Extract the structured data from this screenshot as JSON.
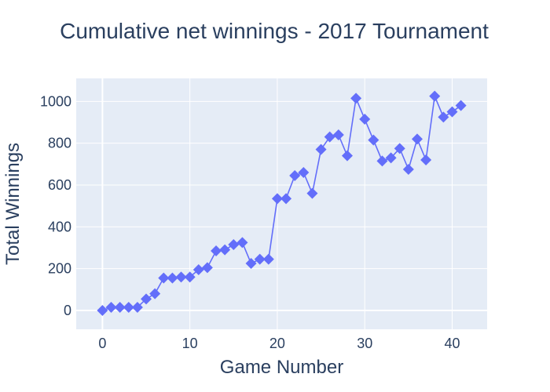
{
  "chart_data": {
    "type": "line",
    "title": "Cumulative net winnings - 2017 Tournament",
    "xlabel": "Game Number",
    "ylabel": "Total Winnings",
    "xlim": [
      -3,
      44
    ],
    "ylim": [
      -90,
      1110
    ],
    "xticks": [
      0,
      10,
      20,
      30,
      40
    ],
    "yticks": [
      0,
      200,
      400,
      600,
      800,
      1000
    ],
    "grid": true,
    "marker": "diamond",
    "colors": {
      "line": "#636efa",
      "plot_bg": "#e5ecf6",
      "text": "#2a3f5f"
    },
    "x": [
      0,
      1,
      2,
      3,
      4,
      5,
      6,
      7,
      8,
      9,
      10,
      11,
      12,
      13,
      14,
      15,
      16,
      17,
      18,
      19,
      20,
      21,
      22,
      23,
      24,
      25,
      26,
      27,
      28,
      29,
      30,
      31,
      32,
      33,
      34,
      35,
      36,
      37,
      38,
      39,
      40,
      41
    ],
    "y": [
      0,
      15,
      15,
      15,
      15,
      55,
      80,
      155,
      155,
      160,
      160,
      195,
      205,
      285,
      290,
      315,
      325,
      225,
      245,
      245,
      535,
      535,
      645,
      660,
      560,
      770,
      830,
      840,
      740,
      1015,
      915,
      815,
      715,
      730,
      775,
      675,
      820,
      720,
      1025,
      925,
      950,
      980
    ]
  }
}
